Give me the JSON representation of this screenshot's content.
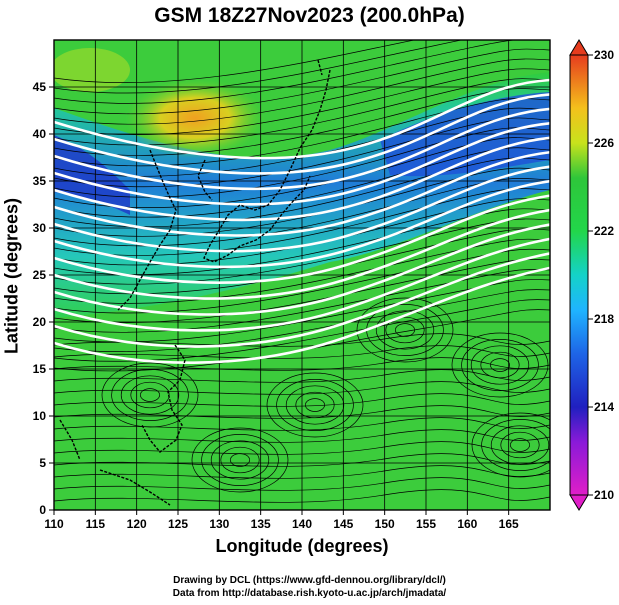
{
  "title": "GSM 18Z27Nov2023 (200.0hPa)",
  "x_axis": {
    "label": "Longitude (degrees)",
    "range": [
      110,
      170
    ],
    "ticks": [
      "110",
      "115",
      "120",
      "125",
      "130",
      "135",
      "140",
      "145",
      "150",
      "155",
      "160",
      "165"
    ]
  },
  "y_axis": {
    "label": "Latitude  (degrees)",
    "range": [
      0,
      50
    ],
    "ticks": [
      "0",
      "5",
      "10",
      "15",
      "20",
      "25",
      "30",
      "35",
      "40",
      "45"
    ]
  },
  "colorbar": {
    "range": [
      210,
      230
    ],
    "ticks": [
      "210",
      "214",
      "218",
      "222",
      "226",
      "230"
    ],
    "colors": [
      "#e01ec8",
      "#2020c0",
      "#1fb4ff",
      "#22d64a",
      "#f4e41c",
      "#e63c1e"
    ]
  },
  "credits": {
    "line1": "Drawing by DCL (https://www.gfd-dennou.org/library/dcl/)",
    "line2": "Data from http://database.rish.kyoto-u.ac.jp/arch/jmadata/"
  },
  "chart_data": {
    "type": "heatmap",
    "title": "GSM 18Z27Nov2023 (200.0hPa)",
    "xlabel": "Longitude (degrees)",
    "ylabel": "Latitude  (degrees)",
    "xlim": [
      110,
      170
    ],
    "ylim": [
      0,
      50
    ],
    "colorbar_range": [
      210,
      230
    ],
    "grid": true
  }
}
